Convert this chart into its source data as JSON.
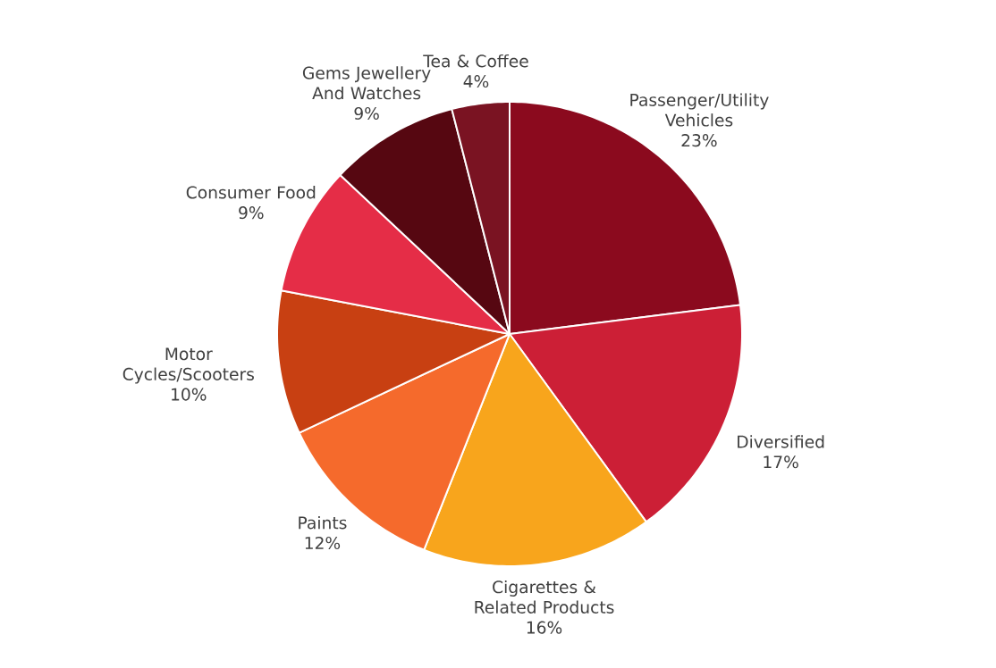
{
  "chart_data": {
    "type": "pie",
    "categories": [
      "Passenger/Utility Vehicles",
      "Diversified",
      "Cigarettes & Related Products",
      "Paints",
      "Motor Cycles/Scooters",
      "Consumer Food",
      "Gems Jewellery And Watches",
      "Tea & Coffee"
    ],
    "values": [
      23,
      17,
      16,
      12,
      10,
      9,
      9,
      4
    ],
    "value_labels": [
      "23%",
      "17%",
      "16%",
      "12%",
      "10%",
      "9%",
      "9%",
      "4%"
    ],
    "colors": [
      "#8b0a1e",
      "#cc1f36",
      "#f8a51c",
      "#f56a2c",
      "#c84012",
      "#e52d47",
      "#560711",
      "#7a1322"
    ]
  }
}
